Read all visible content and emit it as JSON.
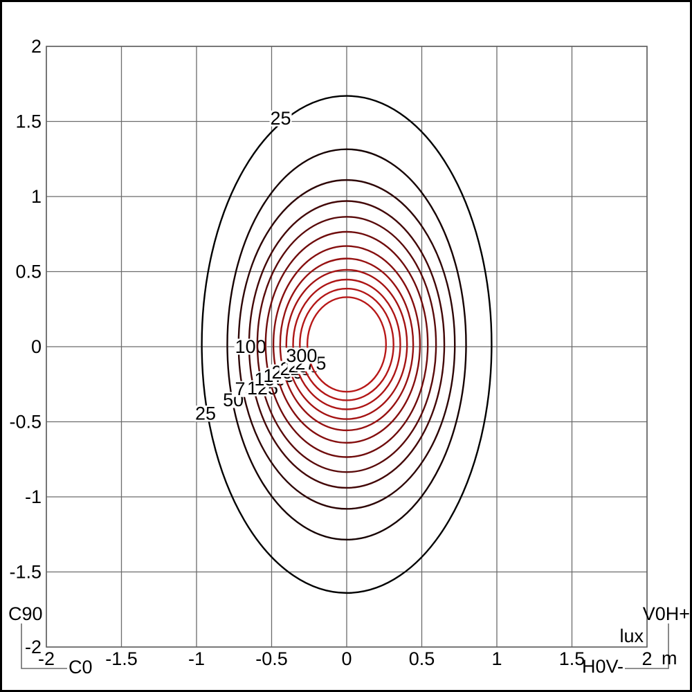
{
  "chart_data": {
    "type": "contour",
    "subtype": "isolux-diagram",
    "units": {
      "value_unit": "lux",
      "axis_unit": "m"
    },
    "plane_labels": {
      "left_vertical": "C90",
      "left_horizontal": "C0",
      "right_vertical": "V0H+",
      "right_horizontal": "H0V-"
    },
    "x_axis": {
      "range": [
        -2,
        2
      ],
      "ticks": [
        -2,
        -1.5,
        -1,
        -0.5,
        0,
        0.5,
        1,
        1.5,
        2
      ],
      "tick_labels": [
        "-2",
        "-1.5",
        "-1",
        "-0.5",
        "0",
        "0.5",
        "1",
        "1.5",
        "2"
      ]
    },
    "y_axis": {
      "range": [
        -2,
        2
      ],
      "ticks": [
        2,
        1.5,
        1,
        0.5,
        0,
        -0.5,
        -1,
        -1.5,
        -2
      ],
      "tick_labels": [
        "2",
        "1.5",
        "1",
        "0.5",
        "0",
        "-0.5",
        "-1",
        "-1.5",
        "-2"
      ]
    },
    "grid": {
      "step": 0.5,
      "color": "#6b6b6b",
      "border_color": "#5f5f5f"
    },
    "center": [
      0,
      0.015
    ],
    "contour_line_width": 2.4,
    "contours": [
      {
        "value": 25,
        "rx": 0.965,
        "ry": 1.655,
        "color": "#000000",
        "labels": [
          {
            "text": "25",
            "x": -0.44,
            "y": 1.52
          },
          {
            "text": "25",
            "x": -0.94,
            "y": -0.445
          }
        ]
      },
      {
        "value": 50,
        "rx": 0.795,
        "ry": 1.3,
        "color": "#160202",
        "labels": [
          {
            "text": "50",
            "x": -0.755,
            "y": -0.355
          }
        ]
      },
      {
        "value": 75,
        "rx": 0.72,
        "ry": 1.095,
        "color": "#2d0505",
        "labels": [
          {
            "text": "75",
            "x": -0.675,
            "y": -0.282
          }
        ]
      },
      {
        "value": 100,
        "rx": 0.65,
        "ry": 0.955,
        "color": "#430707",
        "labels": [
          {
            "text": "100",
            "x": -0.64,
            "y": 0.0
          }
        ]
      },
      {
        "value": 125,
        "rx": 0.595,
        "ry": 0.85,
        "color": "#590a0a",
        "labels": [
          {
            "text": "125",
            "x": -0.56,
            "y": -0.277
          }
        ]
      },
      {
        "value": 150,
        "rx": 0.54,
        "ry": 0.75,
        "color": "#6f0c0c",
        "labels": [
          {
            "text": "150",
            "x": -0.512,
            "y": -0.217
          }
        ]
      },
      {
        "value": 175,
        "rx": 0.488,
        "ry": 0.655,
        "color": "#850e0e",
        "labels": [
          {
            "text": "175",
            "x": -0.452,
            "y": -0.194
          }
        ]
      },
      {
        "value": 200,
        "rx": 0.443,
        "ry": 0.572,
        "color": "#971111",
        "labels": [
          {
            "text": "200",
            "x": -0.396,
            "y": -0.171
          }
        ]
      },
      {
        "value": 225,
        "rx": 0.402,
        "ry": 0.497,
        "color": "#a41313",
        "labels": [
          {
            "text": "225",
            "x": -0.341,
            "y": -0.148
          }
        ]
      },
      {
        "value": 250,
        "rx": 0.357,
        "ry": 0.432,
        "color": "#ad1515",
        "labels": [
          {
            "text": "250",
            "x": -0.286,
            "y": -0.129
          }
        ]
      },
      {
        "value": 275,
        "rx": 0.312,
        "ry": 0.372,
        "color": "#b31717",
        "labels": [
          {
            "text": "275",
            "x": -0.24,
            "y": -0.111
          }
        ]
      },
      {
        "value": 300,
        "rx": 0.262,
        "ry": 0.315,
        "color": "#b81818",
        "labels": [
          {
            "text": "300",
            "x": -0.3,
            "y": -0.06
          }
        ]
      }
    ]
  }
}
